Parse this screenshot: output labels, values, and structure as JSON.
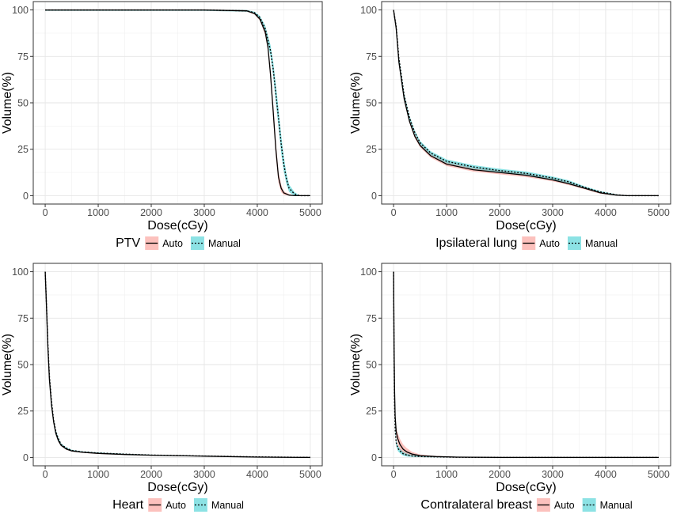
{
  "chart_data": [
    {
      "type": "line",
      "title": "",
      "xlabel": "Dose(cGy)",
      "ylabel": "Volume(%)",
      "xlim": [
        0,
        5000
      ],
      "ylim": [
        0,
        100
      ],
      "x_ticks": [
        0,
        1000,
        2000,
        3000,
        4000,
        5000
      ],
      "y_ticks": [
        0,
        25,
        50,
        75,
        100
      ],
      "grid": true,
      "legend_title": "PTV",
      "legend_position": "bottom",
      "series": [
        {
          "name": "Auto",
          "color": "#F8766D",
          "style": "solid",
          "x": [
            0,
            3000,
            3800,
            3950,
            4050,
            4150,
            4200,
            4250,
            4300,
            4350,
            4400,
            4450,
            4500,
            4600,
            4700,
            5000
          ],
          "y": [
            100,
            100,
            99.5,
            98,
            95,
            88,
            80,
            65,
            45,
            25,
            10,
            4,
            1.5,
            0.3,
            0,
            0
          ],
          "band": [
            0.5,
            0.5,
            0.5,
            0.5,
            0.8,
            1.5,
            2,
            3,
            4,
            4,
            3,
            2,
            1,
            0.5,
            0,
            0
          ]
        },
        {
          "name": "Manual",
          "color": "#00BFC4",
          "style": "dotted",
          "x": [
            0,
            3000,
            3800,
            3950,
            4050,
            4150,
            4250,
            4300,
            4350,
            4400,
            4450,
            4500,
            4550,
            4600,
            4700,
            4800,
            5000
          ],
          "y": [
            100,
            100,
            99.5,
            98.5,
            96,
            90,
            78,
            68,
            55,
            42,
            28,
            17,
            9,
            4,
            1,
            0,
            0
          ],
          "band": [
            0.5,
            0.5,
            0.5,
            0.5,
            0.8,
            1.5,
            3,
            4,
            5,
            5,
            5,
            4,
            3,
            2,
            1,
            0,
            0
          ]
        }
      ]
    },
    {
      "type": "line",
      "title": "",
      "xlabel": "Dose(cGy)",
      "ylabel": "Volume(%)",
      "xlim": [
        0,
        5000
      ],
      "ylim": [
        0,
        100
      ],
      "x_ticks": [
        0,
        1000,
        2000,
        3000,
        4000,
        5000
      ],
      "y_ticks": [
        0,
        25,
        50,
        75,
        100
      ],
      "grid": true,
      "legend_title": "Ipsilateral lung",
      "legend_position": "bottom",
      "series": [
        {
          "name": "Auto",
          "color": "#F8766D",
          "style": "solid",
          "x": [
            0,
            50,
            100,
            200,
            300,
            400,
            500,
            700,
            1000,
            1500,
            2000,
            2500,
            3000,
            3300,
            3600,
            3900,
            4200,
            4400,
            5000
          ],
          "y": [
            100,
            90,
            72,
            52,
            40,
            32,
            27,
            21.5,
            17,
            14,
            12.5,
            11,
            8.5,
            6.5,
            4,
            1.5,
            0.3,
            0,
            0
          ],
          "band": [
            0,
            1,
            1,
            1,
            1,
            1,
            1,
            1,
            1,
            1,
            1,
            1,
            0.8,
            0.8,
            0.6,
            0.5,
            0.2,
            0,
            0
          ]
        },
        {
          "name": "Manual",
          "color": "#00BFC4",
          "style": "dotted",
          "x": [
            0,
            50,
            100,
            200,
            300,
            400,
            500,
            700,
            1000,
            1500,
            2000,
            2500,
            3000,
            3300,
            3600,
            3900,
            4200,
            4400,
            5000
          ],
          "y": [
            100,
            91,
            74,
            54,
            42,
            34,
            28.5,
            23,
            18.5,
            15.5,
            13.5,
            12,
            9.5,
            7.5,
            4.5,
            2,
            0.5,
            0,
            0
          ],
          "band": [
            0,
            1,
            1,
            1,
            1,
            1,
            1,
            1,
            1,
            1,
            1,
            1,
            0.8,
            0.8,
            0.6,
            0.5,
            0.2,
            0,
            0
          ]
        }
      ]
    },
    {
      "type": "line",
      "title": "",
      "xlabel": "Dose(cGy)",
      "ylabel": "Volume(%)",
      "xlim": [
        0,
        5000
      ],
      "ylim": [
        0,
        100
      ],
      "x_ticks": [
        0,
        1000,
        2000,
        3000,
        4000,
        5000
      ],
      "y_ticks": [
        0,
        25,
        50,
        75,
        100
      ],
      "grid": true,
      "legend_title": "Heart",
      "legend_position": "bottom",
      "series": [
        {
          "name": "Auto",
          "color": "#F8766D",
          "style": "solid",
          "x": [
            0,
            20,
            50,
            80,
            120,
            160,
            200,
            250,
            300,
            400,
            500,
            700,
            1000,
            1500,
            2000,
            3000,
            4000,
            5000
          ],
          "y": [
            100,
            85,
            60,
            42,
            28,
            19,
            13,
            9,
            6.5,
            4.5,
            3.5,
            2.8,
            2.2,
            1.6,
            1.2,
            0.7,
            0.2,
            0
          ],
          "band": [
            0,
            1,
            1,
            1,
            1,
            0.8,
            0.8,
            0.6,
            0.5,
            0.4,
            0.3,
            0.3,
            0.3,
            0.2,
            0.2,
            0.1,
            0,
            0
          ]
        },
        {
          "name": "Manual",
          "color": "#00BFC4",
          "style": "dotted",
          "x": [
            0,
            20,
            50,
            80,
            120,
            160,
            200,
            250,
            300,
            400,
            500,
            700,
            1000,
            1500,
            2000,
            3000,
            4000,
            5000
          ],
          "y": [
            100,
            86,
            62,
            44,
            30,
            20,
            14,
            10,
            7,
            5,
            3.8,
            3,
            2.4,
            1.8,
            1.3,
            0.8,
            0.3,
            0
          ],
          "band": [
            0,
            1,
            1,
            1,
            1,
            0.8,
            0.8,
            0.6,
            0.5,
            0.4,
            0.3,
            0.3,
            0.3,
            0.2,
            0.2,
            0.1,
            0,
            0
          ]
        }
      ]
    },
    {
      "type": "line",
      "title": "",
      "xlabel": "Dose(cGy)",
      "ylabel": "Volume(%)",
      "xlim": [
        0,
        5000
      ],
      "ylim": [
        0,
        100
      ],
      "x_ticks": [
        0,
        1000,
        2000,
        3000,
        4000,
        5000
      ],
      "y_ticks": [
        0,
        25,
        50,
        75,
        100
      ],
      "grid": true,
      "legend_title": "Contralateral breast",
      "legend_position": "bottom",
      "series": [
        {
          "name": "Auto",
          "color": "#F8766D",
          "style": "solid",
          "x": [
            0,
            10,
            20,
            30,
            50,
            80,
            120,
            180,
            250,
            350,
            500,
            800,
            1200,
            2000,
            5000
          ],
          "y": [
            100,
            60,
            35,
            22,
            14,
            10,
            7,
            4.5,
            3,
            1.8,
            1,
            0.5,
            0.2,
            0,
            0
          ],
          "band": [
            0,
            2,
            2,
            2,
            2.5,
            3,
            3,
            2.5,
            2,
            1.2,
            0.6,
            0.3,
            0.1,
            0,
            0
          ]
        },
        {
          "name": "Manual",
          "color": "#00BFC4",
          "style": "dotted",
          "x": [
            0,
            10,
            20,
            30,
            50,
            80,
            120,
            180,
            250,
            350,
            500,
            800,
            1200,
            2000,
            5000
          ],
          "y": [
            100,
            55,
            28,
            15,
            8,
            5,
            3.5,
            2,
            1.3,
            0.8,
            0.5,
            0.3,
            0.1,
            0,
            0
          ],
          "band": [
            0,
            2,
            2,
            1.5,
            1.5,
            1.5,
            1.2,
            1,
            0.8,
            0.5,
            0.3,
            0.2,
            0.1,
            0,
            0
          ]
        }
      ]
    }
  ]
}
